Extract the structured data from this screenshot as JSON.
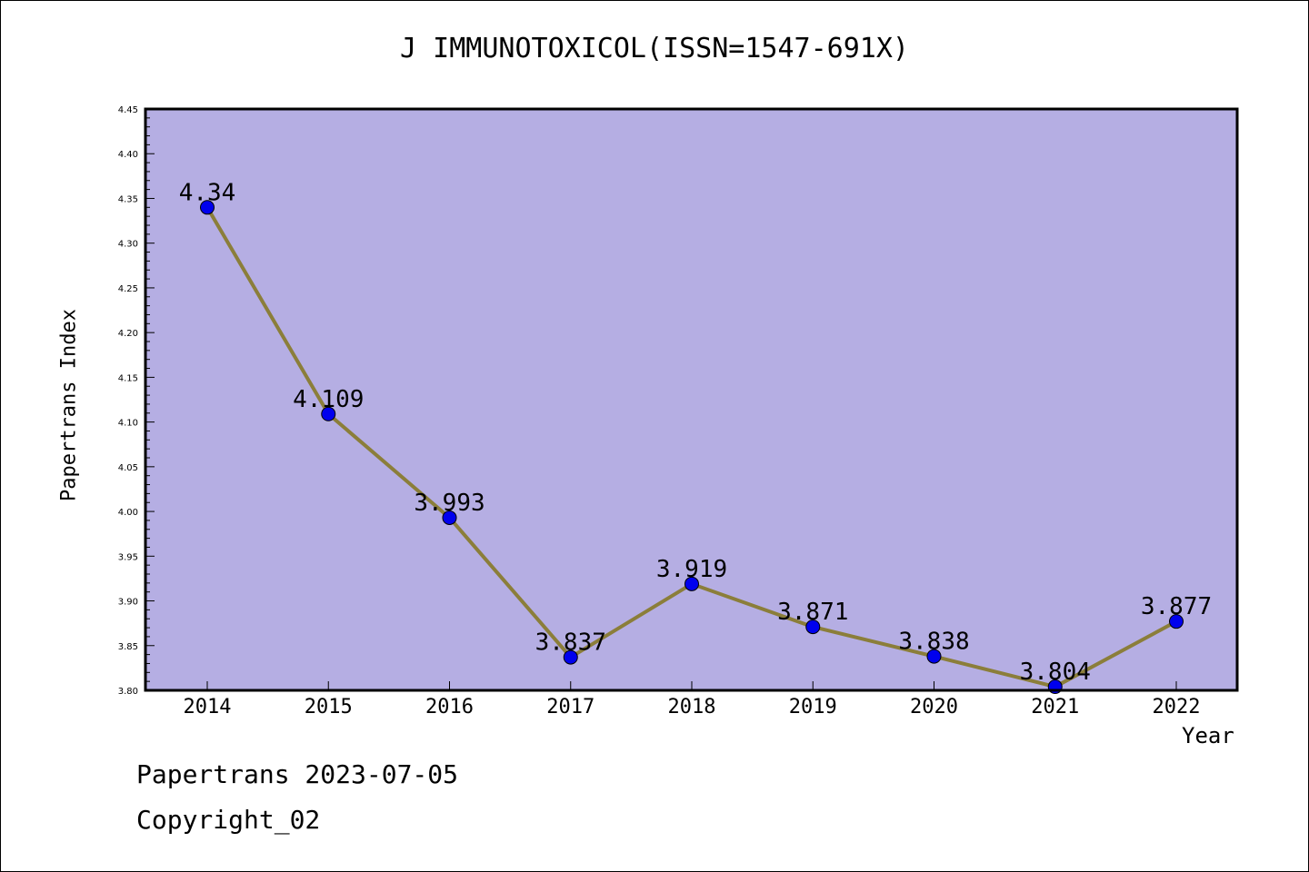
{
  "chart_data": {
    "type": "line",
    "title": "J IMMUNOTOXICOL(ISSN=1547-691X)",
    "xlabel": "Year",
    "ylabel": "Papertrans Index",
    "categories": [
      "2014",
      "2015",
      "2016",
      "2017",
      "2018",
      "2019",
      "2020",
      "2021",
      "2022"
    ],
    "series": [
      {
        "values": [
          4.34,
          4.109,
          3.993,
          3.837,
          3.919,
          3.871,
          3.838,
          3.804,
          3.877
        ],
        "labels": [
          "4.34",
          "4.109",
          "3.993",
          "3.837",
          "3.919",
          "3.871",
          "3.838",
          "3.804",
          "3.877"
        ]
      }
    ],
    "ylim": [
      3.8,
      4.45
    ],
    "yticks": [
      "3.80",
      "3.85",
      "3.90",
      "3.95",
      "4.00",
      "4.05",
      "4.10",
      "4.15",
      "4.20",
      "4.25",
      "4.30",
      "4.35",
      "4.40",
      "4.45"
    ],
    "grid": false,
    "colors": {
      "plot_background": "#b5aee3",
      "line": "#8b7e3a",
      "marker": "#0000ee"
    }
  },
  "footer": {
    "line1": "Papertrans 2023-07-05",
    "line2": "Copyright_02"
  }
}
